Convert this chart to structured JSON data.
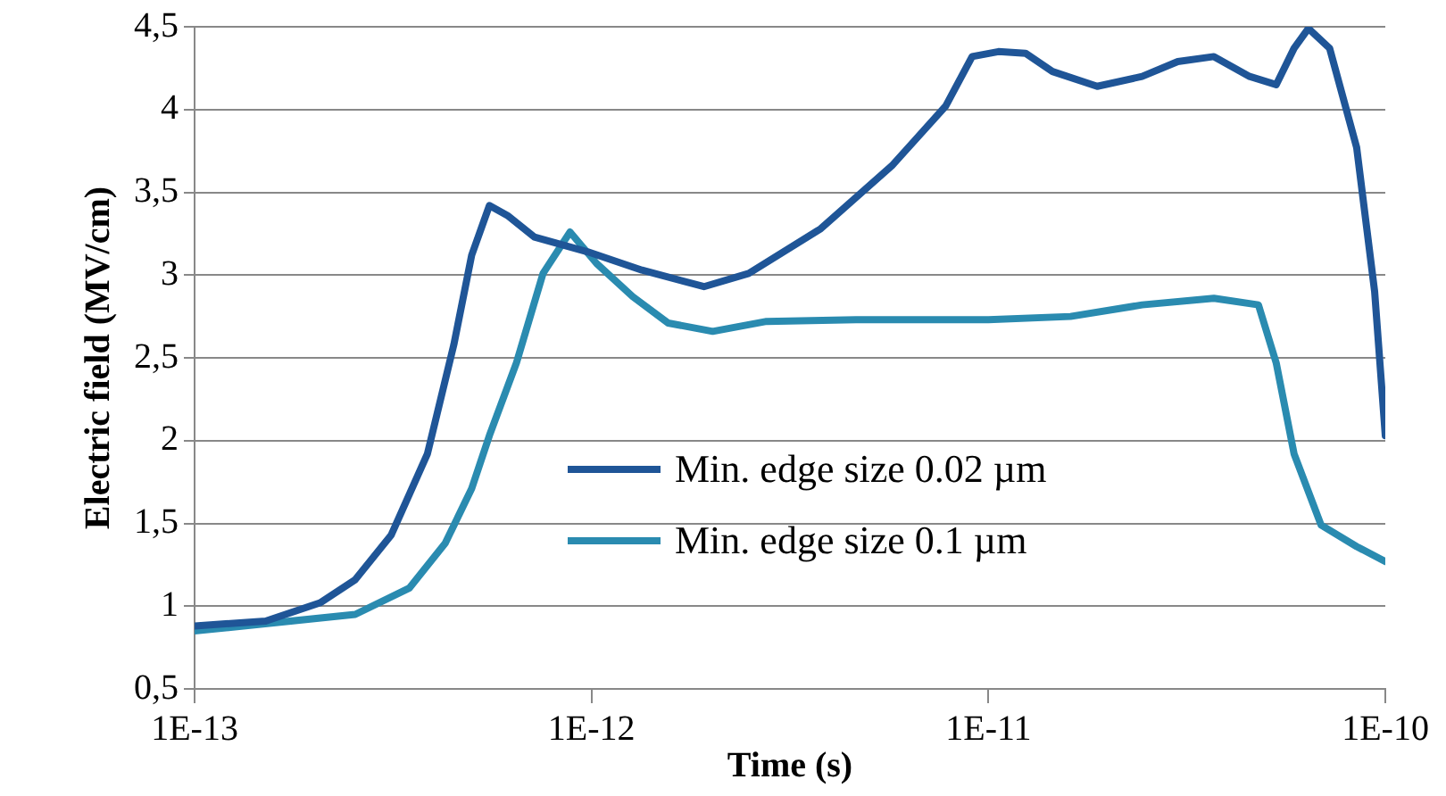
{
  "chart_data": {
    "type": "line",
    "xlabel": "Time (s)",
    "ylabel": "Electric field (MV/cm)",
    "log": "x",
    "xlim": [
      1e-13,
      1e-10
    ],
    "xticks": [
      {
        "value": 1e-13,
        "label": "1E-13"
      },
      {
        "value": 1e-12,
        "label": "1E-12"
      },
      {
        "value": 1e-11,
        "label": "1E-11"
      },
      {
        "value": 1e-10,
        "label": "1E-10"
      }
    ],
    "ylim": [
      0.5,
      4.5
    ],
    "yticks": [
      {
        "value": 0.5,
        "label": "0,5"
      },
      {
        "value": 1,
        "label": "1"
      },
      {
        "value": 1.5,
        "label": "1,5"
      },
      {
        "value": 2,
        "label": "2"
      },
      {
        "value": 2.5,
        "label": "2,5"
      },
      {
        "value": 3,
        "label": "3"
      },
      {
        "value": 3.5,
        "label": "3,5"
      },
      {
        "value": 4,
        "label": "4"
      },
      {
        "value": 4.5,
        "label": "4,5"
      }
    ],
    "grid": "y",
    "legend": "center",
    "marker": "none",
    "line_style": "solid",
    "series": [
      {
        "name": "Min. edge size 0.02 µm",
        "color": "#1f5597",
        "x": [
          1e-13,
          1.51e-13,
          2.07e-13,
          2.54e-13,
          3.13e-13,
          3.86e-13,
          4.5e-13,
          4.99e-13,
          5.53e-13,
          6.14e-13,
          7.18e-13,
          9.8e-13,
          1.34e-12,
          1.92e-12,
          2.49e-12,
          3.78e-12,
          5.71e-12,
          7.8e-12,
          9.1e-12,
          1.06e-11,
          1.24e-11,
          1.45e-11,
          1.88e-11,
          2.44e-11,
          3e-11,
          3.7e-11,
          4.55e-11,
          5.31e-11,
          5.89e-11,
          6.4e-11,
          7.24e-11,
          8.47e-11,
          9.4e-11,
          1e-10
        ],
        "values": [
          0.88,
          0.91,
          1.02,
          1.16,
          1.43,
          1.92,
          2.58,
          3.12,
          3.42,
          3.36,
          3.23,
          3.14,
          3.03,
          2.93,
          3.01,
          3.28,
          3.66,
          4.02,
          4.32,
          4.35,
          4.34,
          4.23,
          4.14,
          4.2,
          4.29,
          4.32,
          4.2,
          4.15,
          4.37,
          4.49,
          4.37,
          3.77,
          2.9,
          2.03
        ]
      },
      {
        "name": "Min. edge size 0.1 µm",
        "color": "#2a8bb0",
        "x": [
          1e-13,
          2.54e-13,
          3.48e-13,
          4.28e-13,
          4.99e-13,
          5.53e-13,
          6.47e-13,
          7.55e-13,
          8.83e-13,
          1.03e-12,
          1.27e-12,
          1.56e-12,
          2.02e-12,
          2.76e-12,
          4.64e-12,
          1e-11,
          1.61e-11,
          2.44e-11,
          3.7e-11,
          4.79e-11,
          5.31e-11,
          5.89e-11,
          6.89e-11,
          8.47e-11,
          1e-10
        ],
        "values": [
          0.85,
          0.95,
          1.11,
          1.38,
          1.71,
          2.03,
          2.47,
          3.01,
          3.26,
          3.07,
          2.87,
          2.71,
          2.66,
          2.72,
          2.73,
          2.73,
          2.75,
          2.82,
          2.86,
          2.82,
          2.47,
          1.92,
          1.49,
          1.36,
          1.27
        ]
      }
    ]
  }
}
